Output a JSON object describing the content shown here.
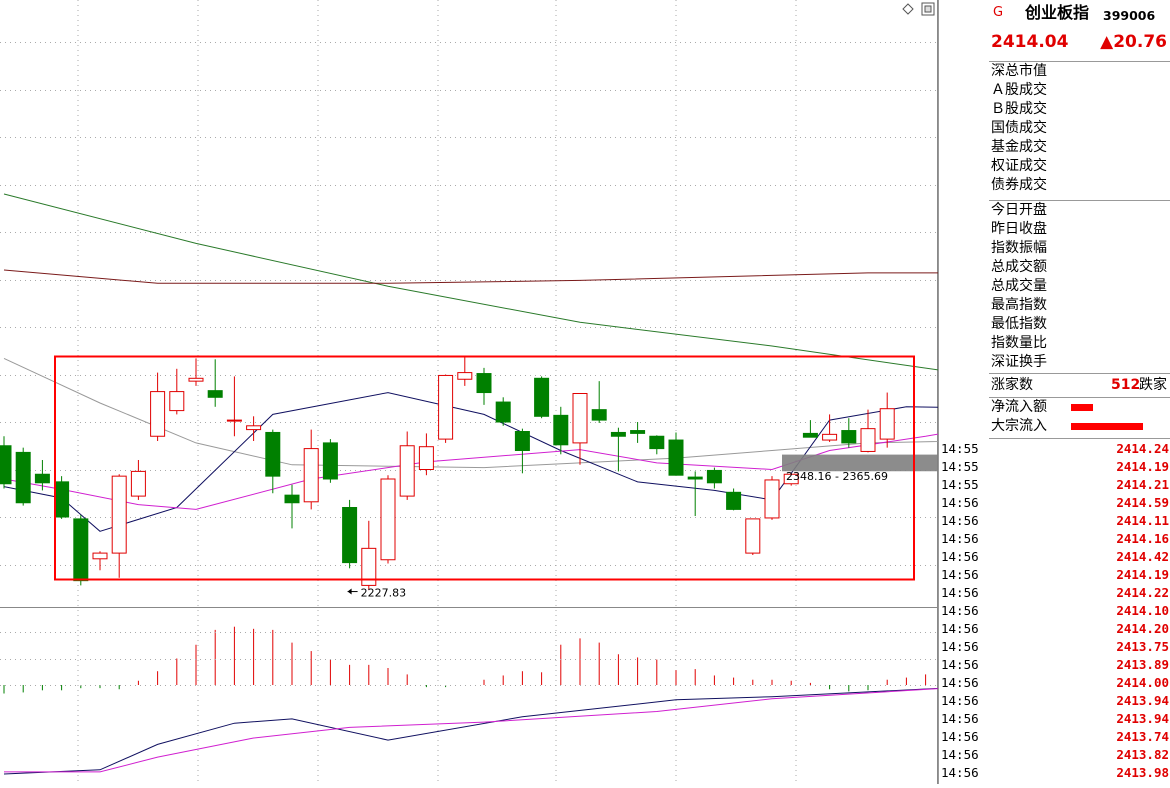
{
  "header": {
    "g_mark": "G",
    "index_name": "创业板指",
    "index_code": "399006",
    "price": "2414.04",
    "change": "▲20.76"
  },
  "market_labels": [
    "深总市值",
    "Ａ股成交",
    "Ｂ股成交",
    "国债成交",
    "基金成交",
    "权证成交",
    "债券成交"
  ],
  "stat_labels": [
    "今日开盘",
    "昨日收盘",
    "指数振幅",
    "总成交额",
    "总成交量",
    "最高指数",
    "最低指数",
    "指数量比",
    "深证换手"
  ],
  "breadth": {
    "label": "涨家数",
    "value": "512",
    "suffix": "跌家"
  },
  "flows": [
    {
      "label": "净流入额",
      "level": 0.3
    },
    {
      "label": "大宗流入",
      "level": 1.0
    }
  ],
  "ticks": [
    {
      "time": "14:55",
      "price": "2414.24"
    },
    {
      "time": "14:55",
      "price": "2414.19"
    },
    {
      "time": "14:55",
      "price": "2414.21"
    },
    {
      "time": "14:56",
      "price": "2414.59"
    },
    {
      "time": "14:56",
      "price": "2414.11"
    },
    {
      "time": "14:56",
      "price": "2414.16"
    },
    {
      "time": "14:56",
      "price": "2414.42"
    },
    {
      "time": "14:56",
      "price": "2414.19"
    },
    {
      "time": "14:56",
      "price": "2414.22"
    },
    {
      "time": "14:56",
      "price": "2414.10"
    },
    {
      "time": "14:56",
      "price": "2414.20"
    },
    {
      "time": "14:56",
      "price": "2413.75"
    },
    {
      "time": "14:56",
      "price": "2413.89"
    },
    {
      "time": "14:56",
      "price": "2414.00"
    },
    {
      "time": "14:56",
      "price": "2413.94"
    },
    {
      "time": "14:56",
      "price": "2413.94"
    },
    {
      "time": "14:56",
      "price": "2413.74"
    },
    {
      "time": "14:56",
      "price": "2413.82"
    },
    {
      "time": "14:56",
      "price": "2413.98"
    }
  ],
  "colors": {
    "up": "#e00000",
    "down": "#008000",
    "ma_green": "#2a7a2a",
    "ma_brown": "#7a1a1a",
    "ma_gray": "#999999",
    "ma_navy": "#101060",
    "ma_magenta": "#d020d0",
    "box": "#ff0000",
    "band": "#808080"
  },
  "chart_data": {
    "type": "candlestick",
    "y_axis": {
      "ticks": [
        2250,
        2300,
        2350,
        2400,
        2450,
        2500,
        2550,
        2600,
        2650,
        2700,
        2750,
        2800
      ],
      "range": [
        2205,
        2825
      ]
    },
    "candles": [
      {
        "o": 2375,
        "h": 2385,
        "l": 2330,
        "c": 2335
      },
      {
        "o": 2368,
        "h": 2373,
        "l": 2312,
        "c": 2315
      },
      {
        "o": 2345,
        "h": 2360,
        "l": 2328,
        "c": 2336
      },
      {
        "o": 2337,
        "h": 2343,
        "l": 2298,
        "c": 2300
      },
      {
        "o": 2298,
        "h": 2302,
        "l": 2228,
        "c": 2233
      },
      {
        "o": 2256,
        "h": 2264,
        "l": 2244,
        "c": 2262
      },
      {
        "o": 2262,
        "h": 2345,
        "l": 2236,
        "c": 2343
      },
      {
        "o": 2322,
        "h": 2360,
        "l": 2318,
        "c": 2348
      },
      {
        "o": 2385,
        "h": 2452,
        "l": 2380,
        "c": 2432
      },
      {
        "o": 2412,
        "h": 2456,
        "l": 2408,
        "c": 2432
      },
      {
        "o": 2443,
        "h": 2467,
        "l": 2438,
        "c": 2446
      },
      {
        "o": 2433,
        "h": 2466,
        "l": 2416,
        "c": 2426
      },
      {
        "o": 2402,
        "h": 2448,
        "l": 2385,
        "c": 2402
      },
      {
        "o": 2392,
        "h": 2406,
        "l": 2380,
        "c": 2396
      },
      {
        "o": 2389,
        "h": 2392,
        "l": 2325,
        "c": 2343
      },
      {
        "o": 2323,
        "h": 2334,
        "l": 2288,
        "c": 2315
      },
      {
        "o": 2316,
        "h": 2392,
        "l": 2308,
        "c": 2372
      },
      {
        "o": 2378,
        "h": 2382,
        "l": 2336,
        "c": 2340
      },
      {
        "o": 2310,
        "h": 2318,
        "l": 2246,
        "c": 2252
      },
      {
        "o": 2228,
        "h": 2296,
        "l": 2223,
        "c": 2267
      },
      {
        "o": 2255,
        "h": 2344,
        "l": 2251,
        "c": 2340
      },
      {
        "o": 2322,
        "h": 2390,
        "l": 2318,
        "c": 2375
      },
      {
        "o": 2350,
        "h": 2388,
        "l": 2344,
        "c": 2374
      },
      {
        "o": 2382,
        "h": 2450,
        "l": 2378,
        "c": 2449
      },
      {
        "o": 2445,
        "h": 2470,
        "l": 2438,
        "c": 2452
      },
      {
        "o": 2451,
        "h": 2457,
        "l": 2418,
        "c": 2431
      },
      {
        "o": 2421,
        "h": 2426,
        "l": 2396,
        "c": 2400
      },
      {
        "o": 2390,
        "h": 2393,
        "l": 2346,
        "c": 2370
      },
      {
        "o": 2446,
        "h": 2448,
        "l": 2404,
        "c": 2406
      },
      {
        "o": 2407,
        "h": 2416,
        "l": 2366,
        "c": 2376
      },
      {
        "o": 2378,
        "h": 2430,
        "l": 2355,
        "c": 2430
      },
      {
        "o": 2413,
        "h": 2443,
        "l": 2399,
        "c": 2402
      },
      {
        "o": 2389,
        "h": 2394,
        "l": 2348,
        "c": 2385
      },
      {
        "o": 2391,
        "h": 2400,
        "l": 2378,
        "c": 2388
      },
      {
        "o": 2385,
        "h": 2386,
        "l": 2366,
        "c": 2372
      },
      {
        "o": 2381,
        "h": 2389,
        "l": 2345,
        "c": 2344
      },
      {
        "o": 2342,
        "h": 2348,
        "l": 2301,
        "c": 2340
      },
      {
        "o": 2349,
        "h": 2352,
        "l": 2330,
        "c": 2336
      },
      {
        "o": 2326,
        "h": 2330,
        "l": 2307,
        "c": 2308
      },
      {
        "o": 2262,
        "h": 2298,
        "l": 2260,
        "c": 2298
      },
      {
        "o": 2299,
        "h": 2343,
        "l": 2297,
        "c": 2339
      },
      {
        "o": 2335,
        "h": 2346,
        "l": 2333,
        "c": 2345
      },
      {
        "o": 2388,
        "h": 2402,
        "l": 2386,
        "c": 2384
      },
      {
        "o": 2381,
        "h": 2408,
        "l": 2379,
        "c": 2387
      },
      {
        "o": 2391,
        "h": 2404,
        "l": 2373,
        "c": 2378
      },
      {
        "o": 2369,
        "h": 2413,
        "l": 2368,
        "c": 2393
      },
      {
        "o": 2382,
        "h": 2431,
        "l": 2373,
        "c": 2414
      }
    ],
    "lines": [
      {
        "key": "ma_green",
        "points": [
          [
            0,
            2640
          ],
          [
            10,
            2588
          ],
          [
            20,
            2543
          ],
          [
            30,
            2505
          ],
          [
            40,
            2480
          ],
          [
            50,
            2451
          ],
          [
            60,
            2424
          ],
          [
            70,
            2407
          ],
          [
            80,
            2389
          ],
          [
            87,
            2380
          ]
        ]
      },
      {
        "key": "ma_brown",
        "points": [
          [
            0,
            2560
          ],
          [
            8,
            2546
          ],
          [
            20,
            2546
          ],
          [
            30,
            2549
          ],
          [
            45,
            2557
          ],
          [
            60,
            2557
          ],
          [
            75,
            2556
          ],
          [
            87,
            2546
          ]
        ]
      },
      {
        "key": "ma_gray",
        "points": [
          [
            0,
            2467
          ],
          [
            5,
            2420
          ],
          [
            10,
            2378
          ],
          [
            15,
            2355
          ],
          [
            25,
            2352
          ],
          [
            35,
            2362
          ],
          [
            40,
            2370
          ],
          [
            45,
            2378
          ],
          [
            55,
            2382
          ],
          [
            65,
            2385
          ],
          [
            70,
            2380
          ],
          [
            80,
            2385
          ],
          [
            87,
            2383
          ]
        ]
      },
      {
        "key": "ma_navy",
        "points": [
          [
            0,
            2332
          ],
          [
            3,
            2320
          ],
          [
            5,
            2285
          ],
          [
            9,
            2310
          ],
          [
            14,
            2408
          ],
          [
            20,
            2431
          ],
          [
            25,
            2408
          ],
          [
            29,
            2370
          ],
          [
            33,
            2337
          ],
          [
            37,
            2328
          ],
          [
            40,
            2318
          ],
          [
            43,
            2402
          ],
          [
            47,
            2416
          ],
          [
            51,
            2415
          ],
          [
            55,
            2402
          ],
          [
            60,
            2393
          ],
          [
            64,
            2383
          ],
          [
            68,
            2353
          ],
          [
            71,
            2340
          ],
          [
            74,
            2327
          ],
          [
            78,
            2329
          ],
          [
            81,
            2344
          ],
          [
            85,
            2365
          ],
          [
            87,
            2384
          ]
        ]
      },
      {
        "key": "ma_magenta",
        "points": [
          [
            0,
            2340
          ],
          [
            3,
            2329
          ],
          [
            7,
            2313
          ],
          [
            10,
            2308
          ],
          [
            16,
            2340
          ],
          [
            22,
            2358
          ],
          [
            30,
            2371
          ],
          [
            34,
            2357
          ],
          [
            40,
            2350
          ],
          [
            43,
            2370
          ],
          [
            48,
            2385
          ],
          [
            55,
            2410
          ],
          [
            60,
            2407
          ],
          [
            65,
            2393
          ],
          [
            70,
            2367
          ],
          [
            73,
            2352
          ],
          [
            77,
            2350
          ],
          [
            80,
            2356
          ],
          [
            84,
            2358
          ],
          [
            87,
            2357
          ]
        ]
      }
    ],
    "annotations": [
      {
        "text": "2227.83",
        "at": [
          18,
          2227.83
        ]
      },
      {
        "text": "2348.16 - 2365.69",
        "range": [
          2348.16,
          2365.69
        ]
      }
    ],
    "sub_chart": {
      "y_ticks": [
        "50.00",
        "25.00",
        "0.00"
      ],
      "range": [
        -85,
        65
      ],
      "bars": [
        -8,
        -7,
        -5,
        -5,
        -3,
        -3,
        -4,
        4,
        13,
        25,
        38,
        52,
        55,
        53,
        52,
        40,
        32,
        24,
        19,
        19,
        16,
        10,
        -2,
        -2,
        0,
        5,
        9,
        13,
        12,
        38,
        44,
        40,
        29,
        26,
        24,
        14,
        15,
        9,
        7,
        5,
        5,
        4,
        2,
        -4,
        -6,
        -5,
        5,
        7,
        10,
        14
      ],
      "lines": [
        {
          "key": "ma_navy",
          "points": [
            [
              0,
              -84
            ],
            [
              5,
              -80
            ],
            [
              8,
              -56
            ],
            [
              12,
              -36
            ],
            [
              15,
              -32
            ],
            [
              20,
              -52
            ],
            [
              27,
              -30
            ],
            [
              35,
              -14
            ],
            [
              40,
              -11
            ],
            [
              50,
              -2
            ],
            [
              57,
              -9
            ],
            [
              62,
              -11
            ],
            [
              66,
              -5
            ],
            [
              70,
              -12
            ],
            [
              74,
              -6
            ],
            [
              80,
              -3
            ],
            [
              85,
              -2
            ],
            [
              87,
              -1
            ]
          ]
        },
        {
          "key": "ma_magenta",
          "points": [
            [
              0,
              -82
            ],
            [
              5,
              -82
            ],
            [
              8,
              -68
            ],
            [
              13,
              -50
            ],
            [
              18,
              -40
            ],
            [
              25,
              -35
            ],
            [
              34,
              -25
            ],
            [
              40,
              -13
            ],
            [
              50,
              -2
            ],
            [
              60,
              -6
            ],
            [
              70,
              -10
            ],
            [
              78,
              -6
            ],
            [
              87,
              -3
            ]
          ]
        }
      ]
    }
  }
}
